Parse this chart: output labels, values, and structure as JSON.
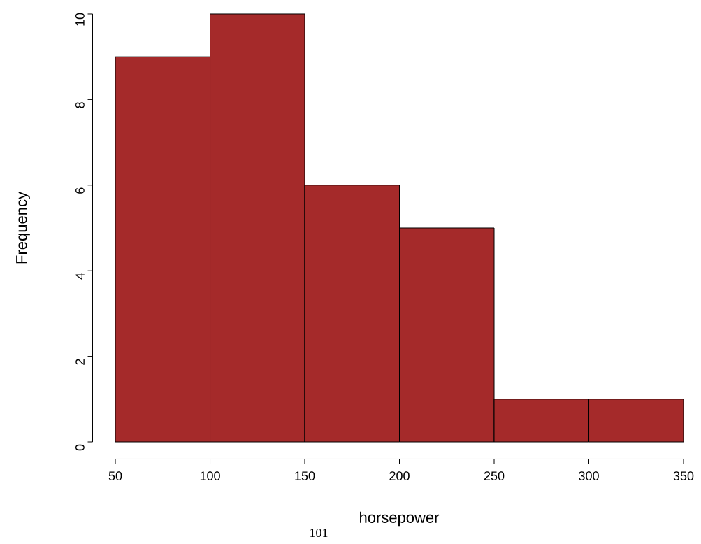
{
  "chart_data": {
    "type": "histogram",
    "xlabel": "horsepower",
    "ylabel": "Frequency",
    "bins": [
      50,
      100,
      150,
      200,
      250,
      300,
      350
    ],
    "values": [
      9,
      10,
      6,
      5,
      1,
      1
    ],
    "color": "#a52a2a",
    "xlim": [
      50,
      350
    ],
    "ylim": [
      0,
      10
    ],
    "xticks": [
      50,
      100,
      150,
      200,
      250,
      300,
      350
    ],
    "yticks": [
      0,
      2,
      4,
      6,
      8,
      10
    ],
    "grid": false,
    "annotations": [
      "101"
    ]
  }
}
